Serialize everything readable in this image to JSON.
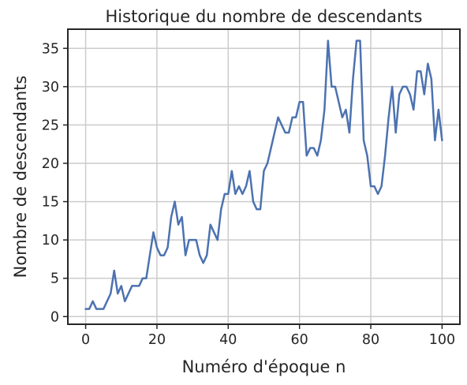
{
  "chart_data": {
    "type": "line",
    "title": "Historique du nombre de descendants",
    "xlabel": "Numéro d'époque n",
    "ylabel": "Nombre de descendants",
    "xlim": [
      -5,
      105
    ],
    "ylim": [
      -1,
      37.5
    ],
    "xticks": [
      0,
      20,
      40,
      60,
      80,
      100
    ],
    "yticks": [
      0,
      5,
      10,
      15,
      20,
      25,
      30,
      35
    ],
    "grid": true,
    "legend": "none",
    "series": [
      {
        "color": "#4c72b0",
        "x": [
          0,
          1,
          2,
          3,
          4,
          5,
          6,
          7,
          8,
          9,
          10,
          11,
          12,
          13,
          14,
          15,
          16,
          17,
          18,
          19,
          20,
          21,
          22,
          23,
          24,
          25,
          26,
          27,
          28,
          29,
          30,
          31,
          32,
          33,
          34,
          35,
          36,
          37,
          38,
          39,
          40,
          41,
          42,
          43,
          44,
          45,
          46,
          47,
          48,
          49,
          50,
          51,
          52,
          53,
          54,
          55,
          56,
          57,
          58,
          59,
          60,
          61,
          62,
          63,
          64,
          65,
          66,
          67,
          68,
          69,
          70,
          71,
          72,
          73,
          74,
          75,
          76,
          77,
          78,
          79,
          80,
          81,
          82,
          83,
          84,
          85,
          86,
          87,
          88,
          89,
          90,
          91,
          92,
          93,
          94,
          95,
          96,
          97,
          98,
          99,
          100
        ],
        "y": [
          1,
          1,
          2,
          1,
          1,
          1,
          2,
          3,
          6,
          3,
          4,
          2,
          3,
          4,
          4,
          4,
          5,
          5,
          8,
          11,
          9,
          8,
          8,
          9,
          13,
          15,
          12,
          13,
          8,
          10,
          10,
          10,
          8,
          7,
          8,
          12,
          11,
          10,
          14,
          16,
          16,
          19,
          16,
          17,
          16,
          17,
          19,
          15,
          14,
          14,
          19,
          20,
          22,
          24,
          26,
          25,
          24,
          24,
          26,
          26,
          28,
          28,
          21,
          22,
          22,
          21,
          23,
          27,
          36,
          30,
          30,
          28,
          26,
          27,
          24,
          31,
          36,
          36,
          23,
          21,
          17,
          17,
          16,
          17,
          21,
          26,
          30,
          24,
          29,
          30,
          30,
          29,
          27,
          32,
          32,
          29,
          33,
          31,
          23,
          27,
          23
        ]
      }
    ]
  }
}
